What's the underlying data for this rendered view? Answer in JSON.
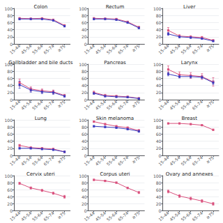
{
  "chart_data": [
    {
      "type": "line",
      "title": "Colon",
      "categories": [
        "15-44",
        "45-54",
        "55-64",
        "65-74",
        "≥75"
      ],
      "series": [
        {
          "color": "#d94f7c",
          "marker": "square",
          "values": [
            72,
            71,
            72,
            68,
            52
          ],
          "errors": [
            2,
            1.5,
            1.5,
            1.5,
            2.5
          ]
        },
        {
          "color": "#3a3abf",
          "marker": "square",
          "values": [
            70,
            70,
            70,
            66,
            50
          ],
          "errors": [
            2,
            1.5,
            1.5,
            1.5,
            2.5
          ]
        }
      ],
      "ylim": [
        0,
        100
      ],
      "yticks": [
        0,
        20,
        40,
        60,
        80,
        100
      ],
      "grid": true
    },
    {
      "type": "line",
      "title": "Rectum",
      "categories": [
        "15-44",
        "45-54",
        "55-64",
        "65-74",
        "≥75"
      ],
      "series": [
        {
          "color": "#d94f7c",
          "marker": "square",
          "values": [
            72,
            71,
            70,
            62,
            47
          ],
          "errors": [
            2,
            1.5,
            1.5,
            2,
            2.5
          ]
        },
        {
          "color": "#3a3abf",
          "marker": "square",
          "values": [
            70,
            70,
            68,
            60,
            45
          ],
          "errors": [
            2,
            1.5,
            1.5,
            2,
            2.5
          ]
        }
      ],
      "ylim": [
        0,
        100
      ],
      "yticks": [
        0,
        20,
        40,
        60,
        80,
        100
      ],
      "grid": true
    },
    {
      "type": "line",
      "title": "Liver",
      "categories": [
        "15-44",
        "45-54",
        "55-64",
        "65-74",
        "≥75"
      ],
      "series": [
        {
          "color": "#d94f7c",
          "marker": "square",
          "values": [
            38,
            22,
            20,
            18,
            10
          ],
          "errors": [
            8,
            4,
            3,
            3,
            2
          ]
        },
        {
          "color": "#3a3abf",
          "marker": "square",
          "values": [
            28,
            20,
            18,
            15,
            8
          ],
          "errors": [
            4,
            3,
            2.5,
            2,
            1.5
          ]
        }
      ],
      "ylim": [
        0,
        100
      ],
      "yticks": [
        0,
        20,
        40,
        60,
        80,
        100
      ],
      "grid": true
    },
    {
      "type": "line",
      "title": "Gallbladder and bile ducts",
      "categories": [
        "15-44",
        "45-54",
        "55-64",
        "65-74",
        "≥75"
      ],
      "series": [
        {
          "color": "#d94f7c",
          "marker": "square",
          "values": [
            48,
            30,
            25,
            22,
            12
          ],
          "errors": [
            10,
            6,
            5,
            5,
            3
          ]
        },
        {
          "color": "#3a3abf",
          "marker": "square",
          "values": [
            42,
            27,
            22,
            20,
            10
          ],
          "errors": [
            10,
            6,
            5,
            5,
            3
          ]
        }
      ],
      "ylim": [
        0,
        100
      ],
      "yticks": [
        0,
        20,
        40,
        60,
        80,
        100
      ],
      "grid": true
    },
    {
      "type": "line",
      "title": "Pancreas",
      "categories": [
        "15-44",
        "45-54",
        "55-64",
        "65-74",
        "≥75"
      ],
      "series": [
        {
          "color": "#d94f7c",
          "marker": "square",
          "values": [
            20,
            12,
            10,
            8,
            4
          ],
          "errors": [
            4,
            3,
            2,
            2,
            1.5
          ]
        },
        {
          "color": "#3a3abf",
          "marker": "square",
          "values": [
            18,
            10,
            8,
            7,
            3
          ],
          "errors": [
            3,
            2.5,
            2,
            2,
            1.5
          ]
        }
      ],
      "ylim": [
        0,
        100
      ],
      "yticks": [
        0,
        20,
        40,
        60,
        80,
        100
      ],
      "grid": true
    },
    {
      "type": "line",
      "title": "Larynx",
      "categories": [
        "15-44",
        "45-54",
        "55-64",
        "65-74",
        "≥75"
      ],
      "series": [
        {
          "color": "#d94f7c",
          "marker": "square",
          "values": [
            85,
            70,
            68,
            65,
            50
          ],
          "errors": [
            10,
            8,
            8,
            8,
            12
          ]
        },
        {
          "color": "#3a3abf",
          "marker": "square",
          "values": [
            72,
            65,
            65,
            63,
            48
          ],
          "errors": [
            5,
            4,
            4,
            4,
            5
          ]
        }
      ],
      "ylim": [
        0,
        100
      ],
      "yticks": [
        0,
        20,
        40,
        60,
        80,
        100
      ],
      "grid": true
    },
    {
      "type": "line",
      "title": "Lung",
      "categories": [
        "15-44",
        "45-54",
        "55-64",
        "65-74",
        "≥75"
      ],
      "series": [
        {
          "color": "#d94f7c",
          "marker": "square",
          "values": [
            28,
            22,
            20,
            18,
            10
          ],
          "errors": [
            3,
            2,
            2,
            2,
            2
          ]
        },
        {
          "color": "#3a3abf",
          "marker": "square",
          "values": [
            20,
            20,
            18,
            16,
            10
          ],
          "errors": [
            2,
            2,
            2,
            2,
            2
          ]
        }
      ],
      "ylim": [
        0,
        100
      ],
      "yticks": [
        0,
        20,
        40,
        60,
        80,
        100
      ],
      "grid": true
    },
    {
      "type": "line",
      "title": "Skin melanoma",
      "categories": [
        "15-44",
        "45-54",
        "55-64",
        "65-74",
        "≥75"
      ],
      "series": [
        {
          "color": "#d94f7c",
          "marker": "square",
          "values": [
            95,
            88,
            82,
            78,
            70
          ],
          "errors": [
            2,
            2,
            2,
            2,
            3
          ]
        },
        {
          "color": "#3a3abf",
          "marker": "square",
          "values": [
            82,
            80,
            78,
            74,
            68
          ],
          "errors": [
            2,
            2,
            2,
            2,
            3
          ]
        }
      ],
      "ylim": [
        0,
        100
      ],
      "yticks": [
        0,
        20,
        40,
        60,
        80,
        100
      ],
      "grid": true
    },
    {
      "type": "line",
      "title": "Breast",
      "categories": [
        "15-44",
        "45-54",
        "55-64",
        "65-74",
        "≥75"
      ],
      "series": [
        {
          "color": "#d94f7c",
          "marker": "square",
          "values": [
            90,
            90,
            88,
            85,
            72
          ],
          "errors": [
            1.5,
            1.5,
            1.5,
            1.5,
            2
          ]
        }
      ],
      "ylim": [
        0,
        100
      ],
      "yticks": [
        0,
        20,
        40,
        60,
        80,
        100
      ],
      "grid": true
    },
    {
      "type": "line",
      "title": "Cervix uteri",
      "categories": [
        "15-44",
        "45-54",
        "55-64",
        "65-74",
        "≥75"
      ],
      "series": [
        {
          "color": "#d94f7c",
          "marker": "square",
          "values": [
            78,
            65,
            58,
            50,
            40
          ],
          "errors": [
            3,
            3,
            3,
            3,
            4
          ]
        }
      ],
      "ylim": [
        0,
        100
      ],
      "yticks": [
        0,
        20,
        40,
        60,
        80,
        100
      ],
      "grid": true
    },
    {
      "type": "line",
      "title": "Corpus uteri",
      "categories": [
        "15-44",
        "45-54",
        "55-64",
        "65-74",
        "≥75"
      ],
      "series": [
        {
          "color": "#d94f7c",
          "marker": "square",
          "values": [
            88,
            85,
            80,
            65,
            52
          ],
          "errors": [
            2,
            2,
            2,
            2,
            3
          ]
        }
      ],
      "ylim": [
        0,
        100
      ],
      "yticks": [
        0,
        20,
        40,
        60,
        80,
        100
      ],
      "grid": true
    },
    {
      "type": "line",
      "title": "Ovary and annexes",
      "categories": [
        "15-44",
        "45-54",
        "55-64",
        "65-74",
        "≥75"
      ],
      "series": [
        {
          "color": "#d94f7c",
          "marker": "square",
          "values": [
            55,
            42,
            35,
            28,
            20
          ],
          "errors": [
            4,
            4,
            4,
            4,
            4
          ]
        }
      ],
      "ylim": [
        0,
        100
      ],
      "yticks": [
        0,
        20,
        40,
        60,
        80,
        100
      ],
      "grid": true
    }
  ]
}
